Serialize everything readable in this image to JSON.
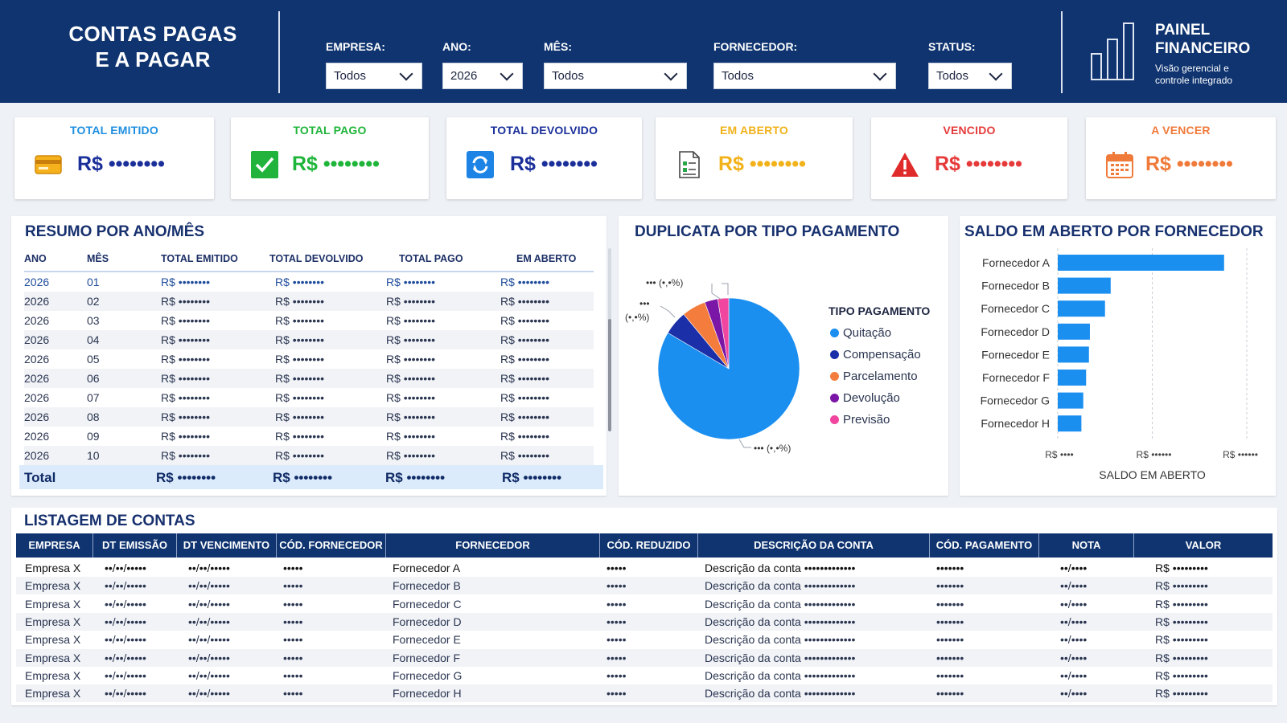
{
  "header": {
    "title_line1": "CONTAS PAGAS",
    "title_line2": "E A PAGAR",
    "filters": [
      {
        "label": "EMPRESA:",
        "value": "Todos"
      },
      {
        "label": "ANO:",
        "value": "2026"
      },
      {
        "label": "MÊS:",
        "value": "Todos"
      },
      {
        "label": "FORNECEDOR:",
        "value": "Todos"
      },
      {
        "label": "STATUS:",
        "value": "Todos"
      }
    ],
    "painel_title_line1": "PAINEL",
    "painel_title_line2": "FINANCEIRO",
    "painel_sub_line1": "Visão gerencial e",
    "painel_sub_line2": "controle integrado"
  },
  "kpis": [
    {
      "title": "TOTAL EMITIDO",
      "value": "R$ ••••••••",
      "color": "#1f8fe0",
      "value_color": "#1a2f9a",
      "icon": "credit-card-icon"
    },
    {
      "title": "TOTAL PAGO",
      "value": "R$ ••••••••",
      "color": "#1fb53a",
      "value_color": "#1fb53a",
      "icon": "checkbox-check-icon"
    },
    {
      "title": "TOTAL DEVOLVIDO",
      "value": "R$ ••••••••",
      "color": "#1a2f9a",
      "value_color": "#1a2f9a",
      "icon": "refresh-icon"
    },
    {
      "title": "EM ABERTO",
      "value": "R$ ••••••••",
      "color": "#f1b21a",
      "value_color": "#f1b21a",
      "icon": "document-icon"
    },
    {
      "title": "VENCIDO",
      "value": "R$ ••••••••",
      "color": "#e63a3a",
      "value_color": "#e63a3a",
      "icon": "warning-icon"
    },
    {
      "title": "A VENCER",
      "value": "R$ ••••••••",
      "color": "#f07a3a",
      "value_color": "#f07a3a",
      "icon": "calendar-icon"
    }
  ],
  "resumo": {
    "title": "RESUMO POR ANO/MÊS",
    "columns": [
      "ANO",
      "MÊS",
      "TOTAL EMITIDO",
      "TOTAL DEVOLVIDO",
      "TOTAL PAGO",
      "EM ABERTO"
    ],
    "rows": [
      [
        "2026",
        "01",
        "R$ ••••••••",
        "R$ ••••••••",
        "R$ ••••••••",
        "R$ ••••••••"
      ],
      [
        "2026",
        "02",
        "R$ ••••••••",
        "R$ ••••••••",
        "R$ ••••••••",
        "R$ ••••••••"
      ],
      [
        "2026",
        "03",
        "R$ ••••••••",
        "R$ ••••••••",
        "R$ ••••••••",
        "R$ ••••••••"
      ],
      [
        "2026",
        "04",
        "R$ ••••••••",
        "R$ ••••••••",
        "R$ ••••••••",
        "R$ ••••••••"
      ],
      [
        "2026",
        "05",
        "R$ ••••••••",
        "R$ ••••••••",
        "R$ ••••••••",
        "R$ ••••••••"
      ],
      [
        "2026",
        "06",
        "R$ ••••••••",
        "R$ ••••••••",
        "R$ ••••••••",
        "R$ ••••••••"
      ],
      [
        "2026",
        "07",
        "R$ ••••••••",
        "R$ ••••••••",
        "R$ ••••••••",
        "R$ ••••••••"
      ],
      [
        "2026",
        "08",
        "R$ ••••••••",
        "R$ ••••••••",
        "R$ ••••••••",
        "R$ ••••••••"
      ],
      [
        "2026",
        "09",
        "R$ ••••••••",
        "R$ ••••••••",
        "R$ ••••••••",
        "R$ ••••••••"
      ],
      [
        "2026",
        "10",
        "R$ ••••••••",
        "R$ ••••••••",
        "R$ ••••••••",
        "R$ ••••••••"
      ]
    ],
    "total": [
      "Total",
      "R$ ••••••••",
      "R$ ••••••••",
      "R$ ••••••••",
      "R$ ••••••••"
    ]
  },
  "pie": {
    "title": "DUPLICATA POR TIPO PAGAMENTO",
    "legend_title": "TIPO PAGAMENTO",
    "labels": {
      "top": "••• (•,•%)",
      "left_line1": "•••",
      "left_line2": "(•,•%)",
      "bottom": "••• (•,•%)"
    }
  },
  "saldo": {
    "title": "SALDO EM ABERTO POR FORNECEDOR",
    "xlabel": "SALDO EM ABERTO",
    "ticks": [
      "R$ ••••",
      "R$ ••••••",
      "R$ ••••••"
    ]
  },
  "chart_data": [
    {
      "type": "pie",
      "title": "DUPLICATA POR TIPO PAGAMENTO",
      "legend": "TIPO PAGAMENTO",
      "legend_placement": "right",
      "series": [
        {
          "name": "Quitação",
          "value": 83.5,
          "color": "#1a8ff0"
        },
        {
          "name": "Compensação",
          "value": 5.5,
          "color": "#1a2fa8"
        },
        {
          "name": "Parcelamento",
          "value": 5.5,
          "color": "#f47c3c"
        },
        {
          "name": "Devolução",
          "value": 3.0,
          "color": "#7a17a6"
        },
        {
          "name": "Previsão",
          "value": 2.5,
          "color": "#f0469f"
        }
      ]
    },
    {
      "type": "bar",
      "orientation": "horizontal",
      "title": "SALDO EM ABERTO POR FORNECEDOR",
      "xlabel": "SALDO EM ABERTO",
      "categories": [
        "Fornecedor A",
        "Fornecedor B",
        "Fornecedor C",
        "Fornecedor D",
        "Fornecedor E",
        "Fornecedor F",
        "Fornecedor G",
        "Fornecedor H"
      ],
      "values": [
        88,
        28,
        25,
        17,
        16.5,
        15,
        13.5,
        12.5
      ],
      "xlim": [
        0,
        100
      ],
      "grid": true,
      "color": "#1a8ff0"
    }
  ],
  "listagem": {
    "title": "LISTAGEM DE CONTAS",
    "columns": [
      "EMPRESA",
      "DT EMISSÃO",
      "DT VENCIMENTO",
      "CÓD. FORNECEDOR",
      "FORNECEDOR",
      "CÓD. REDUZIDO",
      "DESCRIÇÃO DA CONTA",
      "CÓD. PAGAMENTO",
      "NOTA",
      "VALOR"
    ],
    "rows": [
      [
        "Empresa X",
        "••/••/•••••",
        "••/••/•••••",
        "•••••",
        "Fornecedor A",
        "•••••",
        "Descrição da conta •••••••••••••",
        "•••••••",
        "••/••••",
        "R$ •••••••••"
      ],
      [
        "Empresa X",
        "••/••/•••••",
        "••/••/•••••",
        "•••••",
        "Fornecedor B",
        "•••••",
        "Descrição da conta •••••••••••••",
        "•••••••",
        "••/••••",
        "R$ •••••••••"
      ],
      [
        "Empresa X",
        "••/••/•••••",
        "••/••/•••••",
        "•••••",
        "Fornecedor C",
        "•••••",
        "Descrição da conta •••••••••••••",
        "•••••••",
        "••/••••",
        "R$ •••••••••"
      ],
      [
        "Empresa X",
        "••/••/•••••",
        "••/••/•••••",
        "•••••",
        "Fornecedor D",
        "•••••",
        "Descrição da conta •••••••••••••",
        "•••••••",
        "••/••••",
        "R$ •••••••••"
      ],
      [
        "Empresa X",
        "••/••/•••••",
        "••/••/•••••",
        "•••••",
        "Fornecedor E",
        "•••••",
        "Descrição da conta •••••••••••••",
        "•••••••",
        "••/••••",
        "R$ •••••••••"
      ],
      [
        "Empresa X",
        "••/••/•••••",
        "••/••/•••••",
        "•••••",
        "Fornecedor F",
        "•••••",
        "Descrição da conta •••••••••••••",
        "•••••••",
        "••/••••",
        "R$ •••••••••"
      ],
      [
        "Empresa X",
        "••/••/•••••",
        "••/••/•••••",
        "•••••",
        "Fornecedor G",
        "•••••",
        "Descrição da conta •••••••••••••",
        "•••••••",
        "••/••••",
        "R$ •••••••••"
      ],
      [
        "Empresa X",
        "••/••/•••••",
        "••/••/•••••",
        "•••••",
        "Fornecedor H",
        "•••••",
        "Descrição da conta •••••••••••••",
        "•••••••",
        "••/••••",
        "R$ •••••••••"
      ]
    ]
  }
}
